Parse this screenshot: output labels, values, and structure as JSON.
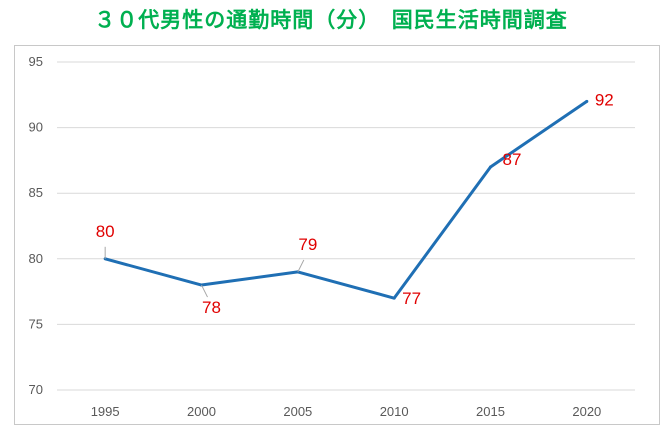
{
  "chart_data": {
    "type": "line",
    "title": "３０代男性の通勤時間（分）　国民生活時間調査",
    "xlabel": "",
    "ylabel": "",
    "categories": [
      "1995",
      "2000",
      "2005",
      "2010",
      "2015",
      "2020"
    ],
    "series": [
      {
        "values": [
          80,
          78,
          79,
          77,
          87,
          92
        ]
      }
    ],
    "ylim": [
      70,
      95
    ],
    "yticks": [
      70,
      75,
      80,
      85,
      90,
      95
    ],
    "grid": true,
    "legend": "none",
    "colors": {
      "title": "#00b050",
      "line": "#1f6fb4",
      "data_label": "#e00000",
      "grid": "#d9d9d9"
    }
  }
}
